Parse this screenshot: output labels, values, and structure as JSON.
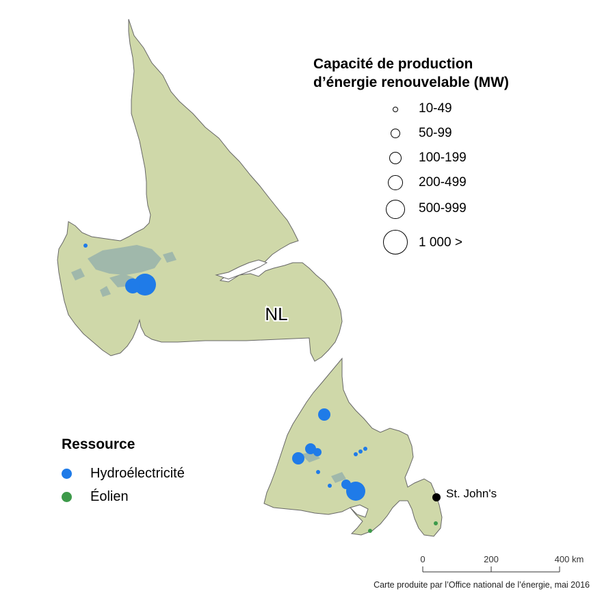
{
  "map": {
    "province_label": "NL",
    "city_label": "St. John's",
    "colors": {
      "land": "#cfd8a9",
      "coast": "#666666",
      "lake": "#98b3ac",
      "hydro": "#1f7be8",
      "wind": "#3d9a4a",
      "city": "#000000"
    }
  },
  "size_legend": {
    "title_line1": "Capacité de production",
    "title_line2": "d’énergie renouvelable (MW)",
    "classes": [
      "10-49",
      "50-99",
      "100-199",
      "200-499",
      "500-999",
      "1 000 >"
    ]
  },
  "resource_legend": {
    "title": "Ressource",
    "items": [
      {
        "label": "Hydroélectricité",
        "color": "#1f7be8"
      },
      {
        "label": "Éolien",
        "color": "#3d9a4a"
      }
    ]
  },
  "scale_bar": {
    "ticks": [
      "0",
      "200",
      "400 km"
    ]
  },
  "credit": "Carte produite par l’Office national de l’énergie, mai 2016"
}
